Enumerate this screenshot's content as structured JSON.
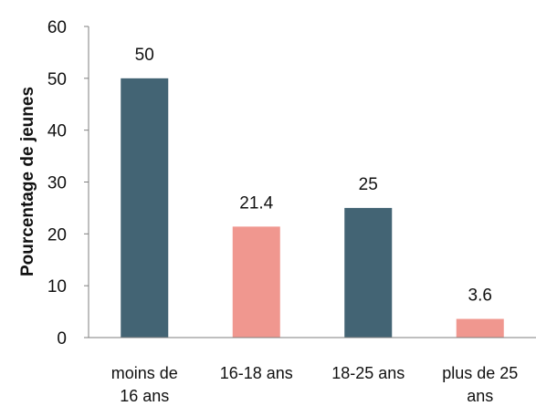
{
  "chart_data": {
    "type": "bar",
    "ylabel": "Pourcentage de jeunes",
    "xlabel": "",
    "ylim": [
      0,
      60
    ],
    "yticks": [
      0,
      10,
      20,
      30,
      40,
      50,
      60
    ],
    "grid": false,
    "legend": "none",
    "categories": [
      [
        "moins de",
        "16 ans"
      ],
      [
        "16-18 ans"
      ],
      [
        "18-25 ans"
      ],
      [
        "plus de 25",
        "ans"
      ]
    ],
    "values": [
      50,
      21.4,
      25,
      3.6
    ],
    "value_labels": [
      "50",
      "21.4",
      "25",
      "3.6"
    ],
    "bar_colors": [
      "#436474",
      "#f0978f",
      "#436474",
      "#f0978f"
    ],
    "axis_color": "#7f7f7f"
  }
}
